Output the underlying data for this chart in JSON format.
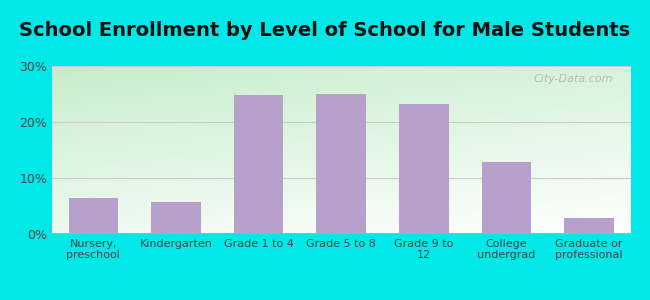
{
  "title": "School Enrollment by Level of School for Male Students",
  "categories": [
    "Nursery,\npreschool",
    "Kindergarten",
    "Grade 1 to 4",
    "Grade 5 to 8",
    "Grade 9 to\n12",
    "College\nundergrad",
    "Graduate or\nprofessional"
  ],
  "values": [
    6.5,
    5.8,
    24.8,
    25.0,
    23.2,
    12.8,
    2.8
  ],
  "bar_color": "#b8a0cc",
  "ylim": [
    0,
    30
  ],
  "yticks": [
    0,
    10,
    20,
    30
  ],
  "ytick_labels": [
    "0%",
    "10%",
    "20%",
    "30%"
  ],
  "title_fontsize": 14,
  "tick_fontsize": 9,
  "background_outer": "#00e8e8",
  "watermark": "City-Data.com",
  "grid_color": "#cccccc",
  "gradient_top_right": "#ffffff",
  "gradient_bottom_left": "#c8ecd4"
}
